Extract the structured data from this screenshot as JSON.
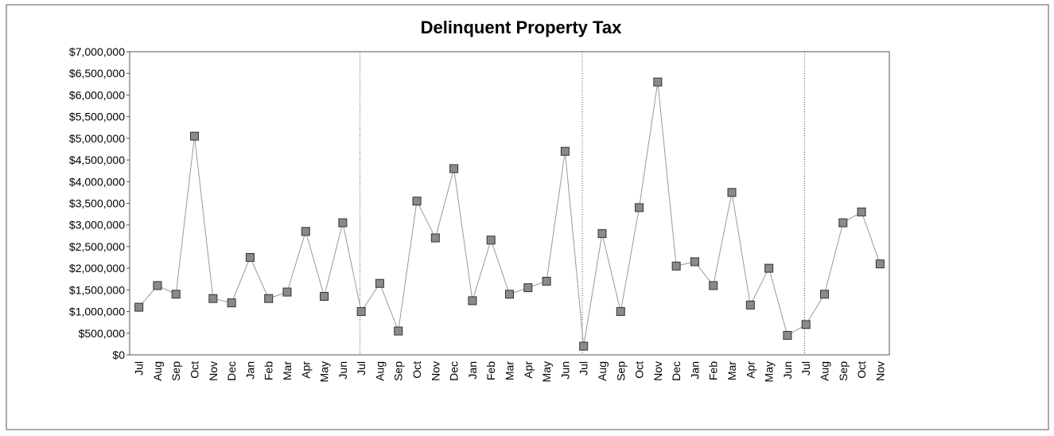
{
  "chart_data": {
    "type": "line",
    "title": "Delinquent Property Tax",
    "categories": [
      "Jul",
      "Aug",
      "Sep",
      "Oct",
      "Nov",
      "Dec",
      "Jan",
      "Feb",
      "Mar",
      "Apr",
      "May",
      "Jun",
      "Jul",
      "Aug",
      "Sep",
      "Oct",
      "Nov",
      "Dec",
      "Jan",
      "Feb",
      "Mar",
      "Apr",
      "May",
      "Jun",
      "Jul",
      "Aug",
      "Sep",
      "Oct",
      "Nov",
      "Dec",
      "Jan",
      "Feb",
      "Mar",
      "Apr",
      "May",
      "Jun",
      "Jul",
      "Aug",
      "Sep",
      "Oct",
      "Nov"
    ],
    "values": [
      1100000,
      1600000,
      1400000,
      5050000,
      1300000,
      1200000,
      2250000,
      1300000,
      1450000,
      2850000,
      1350000,
      3050000,
      1000000,
      1650000,
      550000,
      3550000,
      2700000,
      4300000,
      1250000,
      2650000,
      1400000,
      1550000,
      1700000,
      4700000,
      200000,
      2800000,
      1000000,
      3400000,
      6300000,
      2050000,
      2150000,
      1600000,
      3750000,
      1150000,
      2000000,
      450000,
      700000,
      1400000,
      3050000,
      3300000,
      2100000
    ],
    "color": "#999999",
    "marker_color": "#8a8a8a",
    "ylim": [
      0,
      7000000
    ],
    "yticks": [
      {
        "value": 0,
        "label": "$0"
      },
      {
        "value": 500000,
        "label": "$500,000"
      },
      {
        "value": 1000000,
        "label": "$1,000,000"
      },
      {
        "value": 1500000,
        "label": "$1,500,000"
      },
      {
        "value": 2000000,
        "label": "$2,000,000"
      },
      {
        "value": 2500000,
        "label": "$2,500,000"
      },
      {
        "value": 3000000,
        "label": "$3,000,000"
      },
      {
        "value": 3500000,
        "label": "$3,500,000"
      },
      {
        "value": 4000000,
        "label": "$4,000,000"
      },
      {
        "value": 4500000,
        "label": "$4,500,000"
      },
      {
        "value": 5000000,
        "label": "$5,000,000"
      },
      {
        "value": 5500000,
        "label": "$5,500,000"
      },
      {
        "value": 6000000,
        "label": "$6,000,000"
      },
      {
        "value": 6500000,
        "label": "$6,500,000"
      },
      {
        "value": 7000000,
        "label": "$7,000,000"
      }
    ],
    "grid": false
  }
}
